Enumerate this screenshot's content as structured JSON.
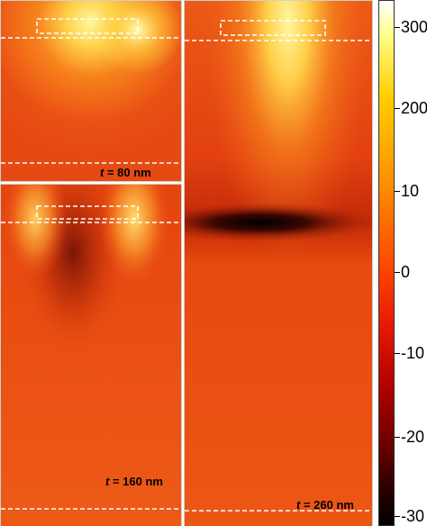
{
  "panels": [
    {
      "id": "p80",
      "value": "80 nm",
      "var": "t"
    },
    {
      "id": "p160",
      "value": "160 nm",
      "var": "t"
    },
    {
      "id": "p260",
      "value": "260 nm",
      "var": "t"
    }
  ],
  "colorbar": {
    "ticks": [
      "300",
      "200",
      "10",
      "0",
      "-10",
      "-20",
      "-30"
    ]
  },
  "colors": {
    "background": "#e94a12",
    "hot": "#ffff80",
    "cold": "#000000",
    "dashed_line": "#ffffff"
  }
}
